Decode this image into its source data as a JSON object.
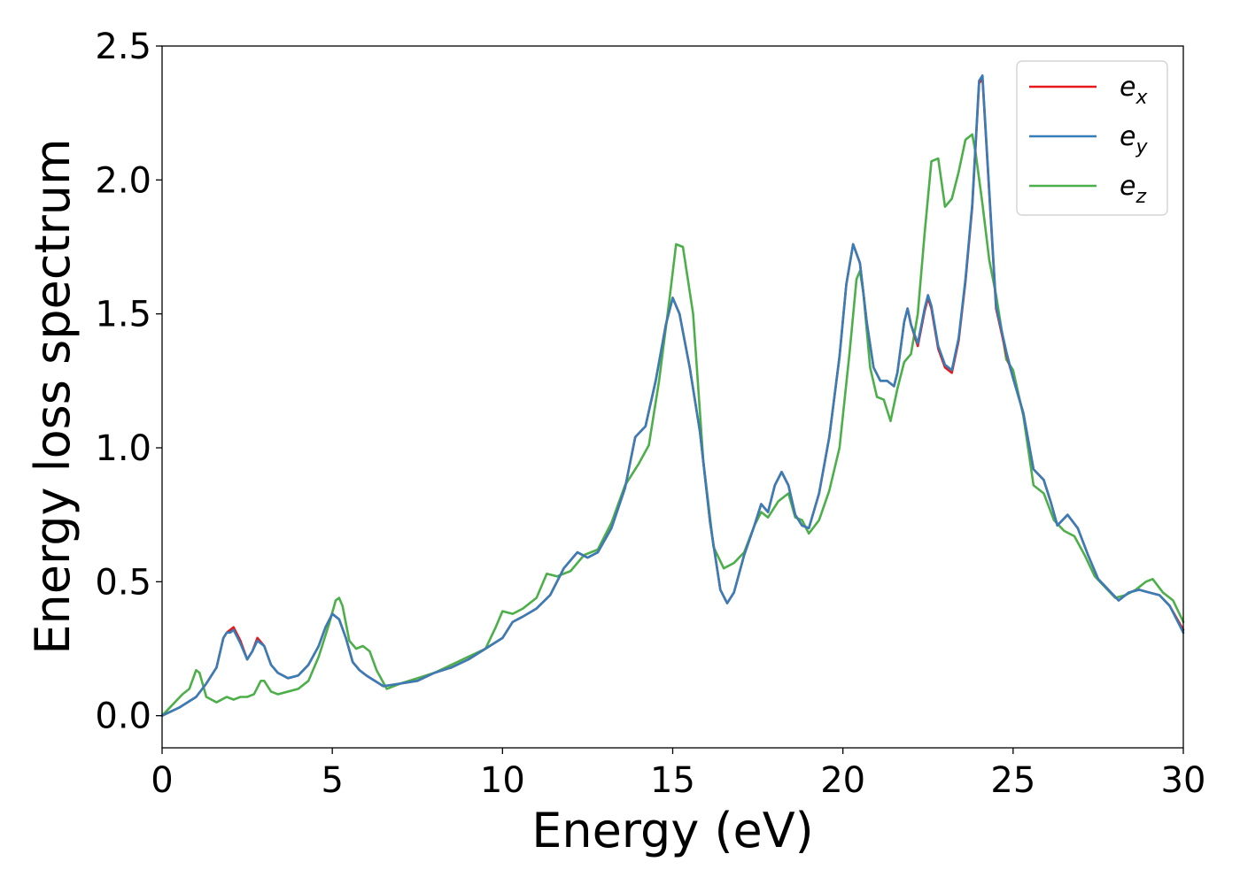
{
  "chart_data": {
    "type": "line",
    "xlabel": "Energy (eV)",
    "ylabel": "Energy loss spectrum",
    "xlim": [
      0,
      30
    ],
    "ylim": [
      -0.12,
      2.5
    ],
    "xticks": [
      0,
      5,
      10,
      15,
      20,
      25,
      30
    ],
    "xtick_labels": [
      "0",
      "5",
      "10",
      "15",
      "20",
      "25",
      "30"
    ],
    "yticks": [
      0.0,
      0.5,
      1.0,
      1.5,
      2.0,
      2.5
    ],
    "ytick_labels": [
      "0.0",
      "0.5",
      "1.0",
      "1.5",
      "2.0",
      "2.5"
    ],
    "grid": false,
    "legend_position": "top-right",
    "series": [
      {
        "name": "e",
        "subscript": "x",
        "color": "#e41a1c",
        "x": [
          0,
          0.5,
          1.0,
          1.3,
          1.6,
          1.8,
          1.9,
          2.0,
          2.1,
          2.3,
          2.5,
          2.65,
          2.8,
          3.0,
          3.2,
          3.4,
          3.7,
          4.0,
          4.3,
          4.6,
          4.8,
          5.0,
          5.2,
          5.4,
          5.6,
          5.8,
          6.0,
          6.5,
          7.0,
          7.5,
          8.0,
          8.5,
          9.0,
          9.5,
          10.0,
          10.3,
          10.6,
          11.0,
          11.4,
          11.8,
          12.2,
          12.5,
          12.8,
          13.2,
          13.6,
          13.9,
          14.2,
          14.5,
          14.8,
          15.0,
          15.2,
          15.5,
          15.8,
          16.1,
          16.4,
          16.6,
          16.8,
          17.1,
          17.4,
          17.6,
          17.8,
          18.0,
          18.2,
          18.4,
          18.6,
          18.8,
          19.0,
          19.3,
          19.6,
          19.9,
          20.1,
          20.3,
          20.5,
          20.7,
          20.9,
          21.1,
          21.3,
          21.5,
          21.6,
          21.8,
          21.9,
          22.0,
          22.2,
          22.4,
          22.5,
          22.6,
          22.8,
          23.0,
          23.2,
          23.4,
          23.6,
          23.8,
          24.0,
          24.1,
          24.3,
          24.5,
          24.8,
          25.0,
          25.3,
          25.6,
          25.9,
          26.1,
          26.3,
          26.6,
          26.9,
          27.2,
          27.5,
          27.8,
          28.1,
          28.4,
          28.7,
          29.0,
          29.3,
          29.6,
          30.0
        ],
        "y": [
          0.0,
          0.03,
          0.07,
          0.12,
          0.18,
          0.29,
          0.31,
          0.32,
          0.33,
          0.28,
          0.21,
          0.24,
          0.29,
          0.26,
          0.19,
          0.16,
          0.14,
          0.15,
          0.19,
          0.26,
          0.33,
          0.38,
          0.36,
          0.29,
          0.2,
          0.17,
          0.15,
          0.11,
          0.12,
          0.13,
          0.16,
          0.18,
          0.21,
          0.25,
          0.29,
          0.35,
          0.37,
          0.4,
          0.45,
          0.55,
          0.61,
          0.59,
          0.61,
          0.7,
          0.85,
          1.04,
          1.08,
          1.25,
          1.46,
          1.56,
          1.5,
          1.3,
          1.06,
          0.72,
          0.47,
          0.42,
          0.46,
          0.6,
          0.71,
          0.79,
          0.76,
          0.86,
          0.91,
          0.86,
          0.75,
          0.71,
          0.7,
          0.83,
          1.04,
          1.34,
          1.61,
          1.76,
          1.69,
          1.47,
          1.3,
          1.25,
          1.25,
          1.23,
          1.28,
          1.47,
          1.52,
          1.46,
          1.38,
          1.51,
          1.56,
          1.52,
          1.37,
          1.3,
          1.28,
          1.4,
          1.62,
          1.9,
          2.36,
          2.38,
          1.95,
          1.52,
          1.35,
          1.26,
          1.13,
          0.92,
          0.88,
          0.8,
          0.71,
          0.75,
          0.7,
          0.6,
          0.51,
          0.47,
          0.43,
          0.46,
          0.47,
          0.46,
          0.45,
          0.41,
          0.32
        ]
      },
      {
        "name": "e",
        "subscript": "y",
        "color": "#377eb8",
        "x": [
          0,
          0.5,
          1.0,
          1.3,
          1.6,
          1.8,
          1.9,
          2.0,
          2.1,
          2.3,
          2.5,
          2.65,
          2.8,
          3.0,
          3.2,
          3.4,
          3.7,
          4.0,
          4.3,
          4.6,
          4.8,
          5.0,
          5.2,
          5.4,
          5.6,
          5.8,
          6.0,
          6.5,
          7.0,
          7.5,
          8.0,
          8.5,
          9.0,
          9.5,
          10.0,
          10.3,
          10.6,
          11.0,
          11.4,
          11.8,
          12.2,
          12.5,
          12.8,
          13.2,
          13.6,
          13.9,
          14.2,
          14.5,
          14.8,
          15.0,
          15.2,
          15.5,
          15.8,
          16.1,
          16.4,
          16.6,
          16.8,
          17.1,
          17.4,
          17.6,
          17.8,
          18.0,
          18.2,
          18.4,
          18.6,
          18.8,
          19.0,
          19.3,
          19.6,
          19.9,
          20.1,
          20.3,
          20.5,
          20.7,
          20.9,
          21.1,
          21.3,
          21.5,
          21.6,
          21.8,
          21.9,
          22.0,
          22.2,
          22.4,
          22.5,
          22.6,
          22.8,
          23.0,
          23.2,
          23.4,
          23.6,
          23.8,
          24.0,
          24.1,
          24.3,
          24.5,
          24.8,
          25.0,
          25.3,
          25.6,
          25.9,
          26.1,
          26.3,
          26.6,
          26.9,
          27.2,
          27.5,
          27.8,
          28.1,
          28.4,
          28.7,
          29.0,
          29.3,
          29.6,
          30.0
        ],
        "y": [
          0.0,
          0.03,
          0.07,
          0.12,
          0.18,
          0.29,
          0.31,
          0.31,
          0.32,
          0.27,
          0.21,
          0.24,
          0.28,
          0.26,
          0.19,
          0.16,
          0.14,
          0.15,
          0.19,
          0.26,
          0.33,
          0.38,
          0.36,
          0.29,
          0.2,
          0.17,
          0.15,
          0.11,
          0.12,
          0.13,
          0.16,
          0.18,
          0.21,
          0.25,
          0.29,
          0.35,
          0.37,
          0.4,
          0.45,
          0.55,
          0.61,
          0.59,
          0.61,
          0.7,
          0.85,
          1.04,
          1.08,
          1.25,
          1.46,
          1.56,
          1.5,
          1.3,
          1.06,
          0.72,
          0.47,
          0.42,
          0.46,
          0.6,
          0.71,
          0.79,
          0.76,
          0.86,
          0.91,
          0.86,
          0.75,
          0.71,
          0.7,
          0.83,
          1.04,
          1.34,
          1.61,
          1.76,
          1.69,
          1.47,
          1.3,
          1.25,
          1.25,
          1.23,
          1.28,
          1.47,
          1.52,
          1.46,
          1.39,
          1.52,
          1.57,
          1.53,
          1.38,
          1.31,
          1.29,
          1.41,
          1.63,
          1.91,
          2.37,
          2.39,
          1.96,
          1.53,
          1.36,
          1.26,
          1.13,
          0.92,
          0.88,
          0.8,
          0.71,
          0.75,
          0.7,
          0.6,
          0.51,
          0.47,
          0.43,
          0.46,
          0.47,
          0.46,
          0.45,
          0.41,
          0.31
        ]
      },
      {
        "name": "e",
        "subscript": "z",
        "color": "#4daf4a",
        "x": [
          0,
          0.3,
          0.6,
          0.8,
          1.0,
          1.1,
          1.3,
          1.6,
          1.9,
          2.1,
          2.3,
          2.5,
          2.7,
          2.9,
          3.0,
          3.2,
          3.4,
          3.7,
          4.0,
          4.3,
          4.6,
          4.9,
          5.1,
          5.2,
          5.3,
          5.5,
          5.7,
          5.9,
          6.1,
          6.3,
          6.6,
          7.0,
          7.5,
          8.0,
          8.5,
          9.0,
          9.5,
          9.8,
          10.0,
          10.3,
          10.6,
          11.0,
          11.3,
          11.6,
          12.0,
          12.4,
          12.8,
          13.2,
          13.6,
          14.0,
          14.3,
          14.6,
          14.9,
          15.1,
          15.3,
          15.6,
          15.9,
          16.2,
          16.5,
          16.8,
          17.1,
          17.4,
          17.6,
          17.8,
          18.1,
          18.4,
          18.6,
          18.8,
          19.0,
          19.3,
          19.6,
          19.9,
          20.2,
          20.4,
          20.5,
          20.6,
          20.8,
          21.0,
          21.2,
          21.4,
          21.6,
          21.8,
          22.0,
          22.2,
          22.4,
          22.6,
          22.8,
          23.0,
          23.2,
          23.4,
          23.6,
          23.8,
          23.9,
          24.1,
          24.3,
          24.5,
          24.8,
          25.0,
          25.3,
          25.6,
          25.9,
          26.2,
          26.5,
          26.8,
          27.1,
          27.4,
          27.7,
          28.0,
          28.3,
          28.6,
          28.9,
          29.1,
          29.4,
          29.7,
          30.0
        ],
        "y": [
          0.0,
          0.04,
          0.08,
          0.1,
          0.17,
          0.16,
          0.07,
          0.05,
          0.07,
          0.06,
          0.07,
          0.07,
          0.08,
          0.13,
          0.13,
          0.09,
          0.08,
          0.09,
          0.1,
          0.13,
          0.22,
          0.34,
          0.43,
          0.44,
          0.41,
          0.28,
          0.25,
          0.26,
          0.24,
          0.17,
          0.1,
          0.12,
          0.14,
          0.16,
          0.19,
          0.22,
          0.25,
          0.33,
          0.39,
          0.38,
          0.4,
          0.44,
          0.53,
          0.52,
          0.54,
          0.6,
          0.62,
          0.72,
          0.86,
          0.94,
          1.01,
          1.25,
          1.55,
          1.76,
          1.75,
          1.5,
          0.95,
          0.63,
          0.55,
          0.57,
          0.61,
          0.71,
          0.76,
          0.74,
          0.8,
          0.83,
          0.74,
          0.73,
          0.68,
          0.73,
          0.84,
          1.0,
          1.36,
          1.63,
          1.66,
          1.58,
          1.3,
          1.19,
          1.18,
          1.1,
          1.22,
          1.32,
          1.35,
          1.5,
          1.8,
          2.07,
          2.08,
          1.9,
          1.93,
          2.03,
          2.15,
          2.17,
          2.1,
          1.91,
          1.7,
          1.57,
          1.33,
          1.29,
          1.12,
          0.86,
          0.83,
          0.73,
          0.69,
          0.67,
          0.6,
          0.52,
          0.48,
          0.44,
          0.45,
          0.47,
          0.5,
          0.51,
          0.46,
          0.43,
          0.35
        ]
      }
    ]
  }
}
